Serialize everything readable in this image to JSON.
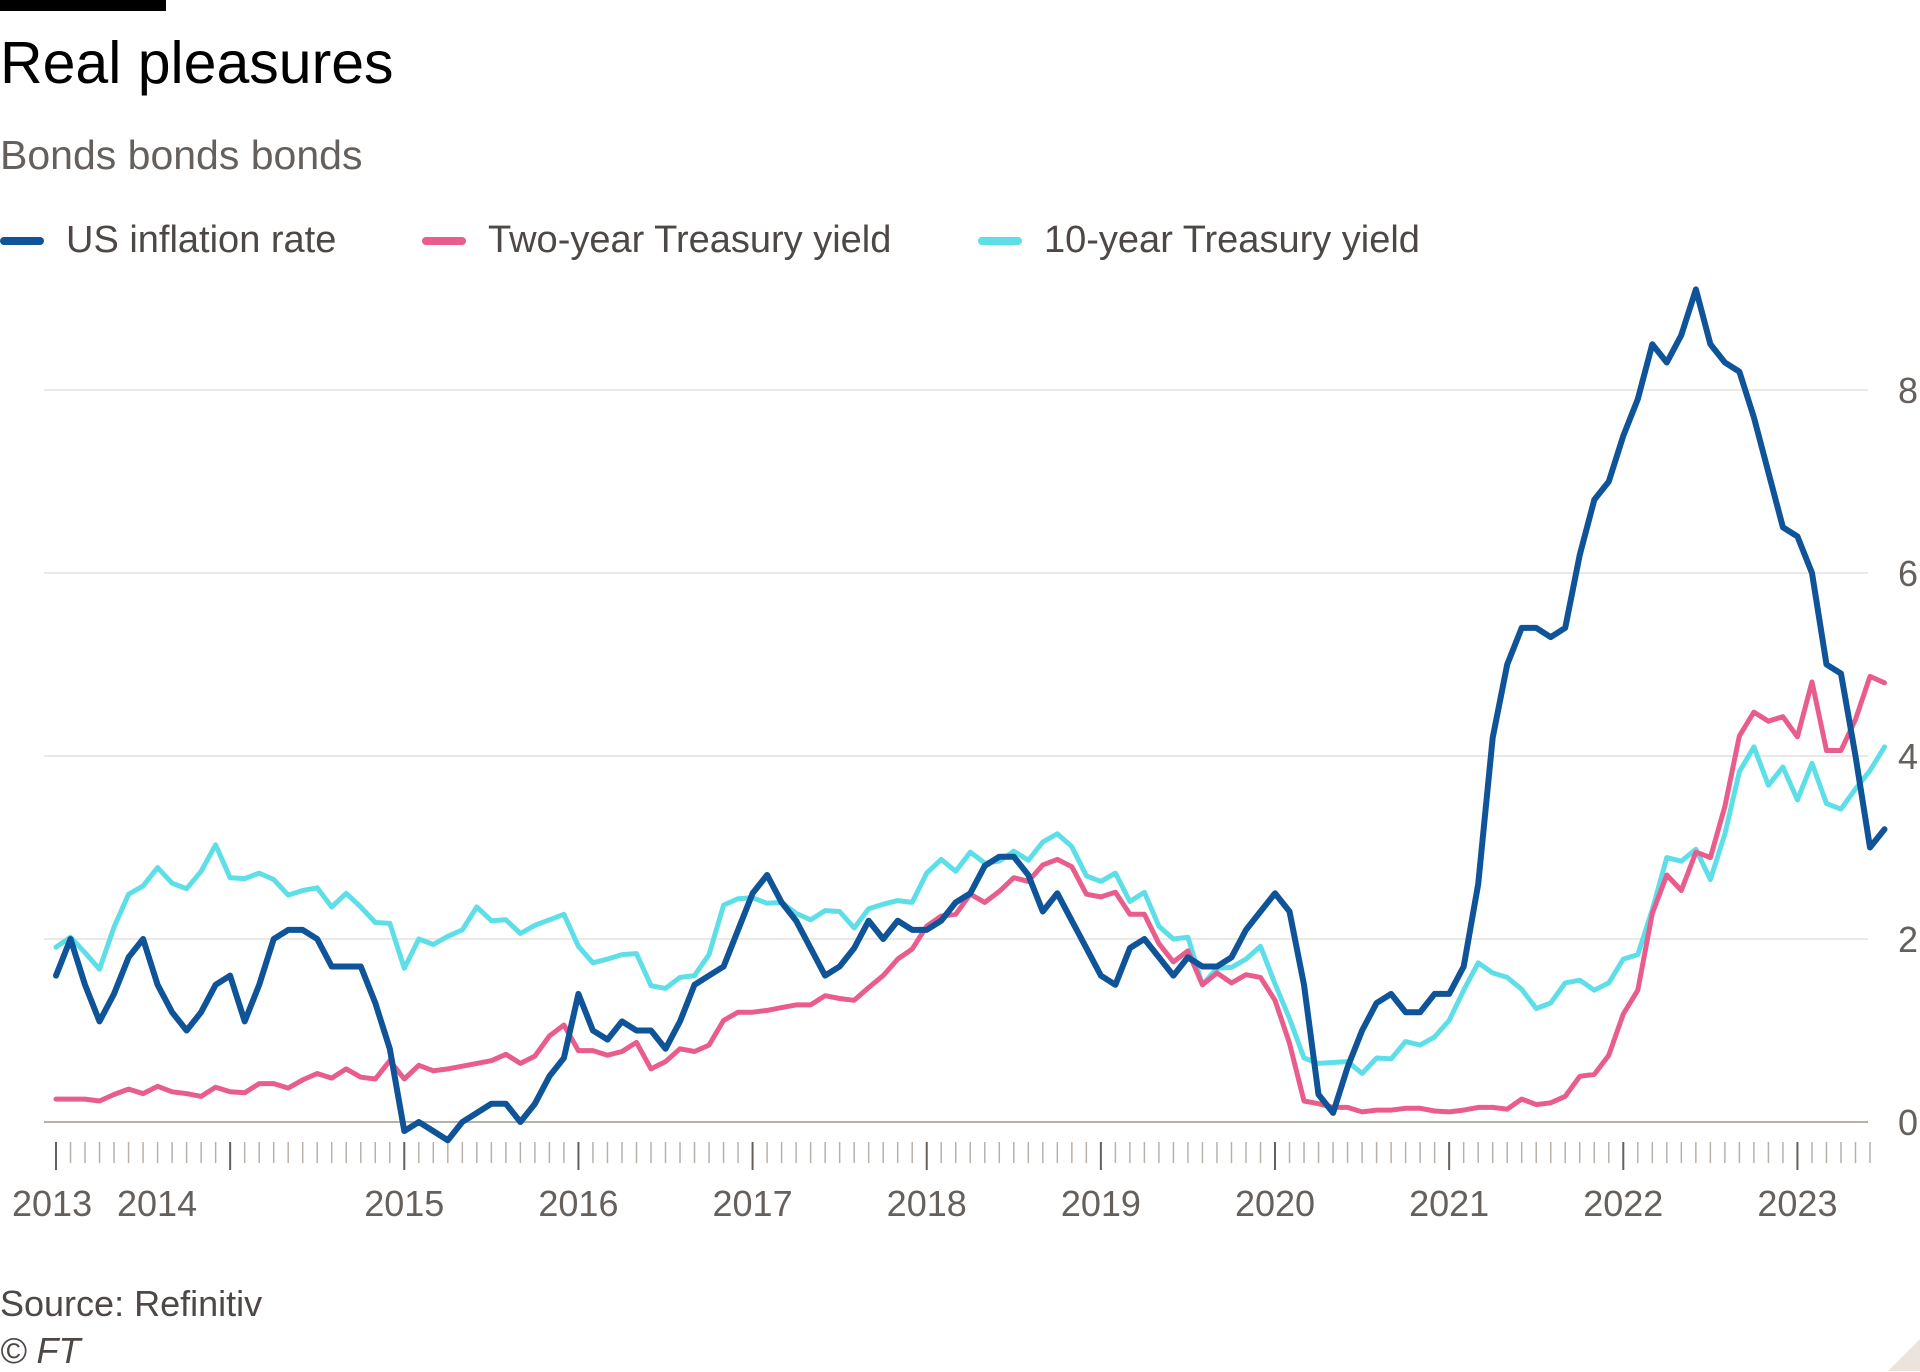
{
  "header": {
    "title": "Real pleasures",
    "subtitle": "Bonds bonds bonds"
  },
  "footer": {
    "source": "Source: Refinitiv",
    "copyright": "© FT"
  },
  "chart_data": {
    "type": "line",
    "title": "Real pleasures",
    "subtitle": "Bonds bonds bonds",
    "xlabel": "",
    "ylabel": "",
    "x_start": "2013-01",
    "x_step": "month",
    "xlim": [
      "2013-01",
      "2023-06"
    ],
    "ylim": [
      -0.3,
      9.6
    ],
    "y_ticks": [
      0,
      2,
      4,
      6,
      8
    ],
    "x_tick_labels": [
      "2013",
      "2014",
      "2015",
      "2016",
      "2017",
      "2018",
      "2019",
      "2020",
      "2021",
      "2022",
      "2023"
    ],
    "grid": "horizontal",
    "y_axis_position": "right",
    "legend_position": "top-left",
    "series": [
      {
        "name": "US inflation rate",
        "color": "#0f5499",
        "values": [
          1.6,
          2.0,
          1.5,
          1.1,
          1.4,
          1.8,
          2.0,
          1.5,
          1.2,
          1.0,
          1.2,
          1.5,
          1.6,
          1.1,
          1.5,
          2.0,
          2.1,
          2.1,
          2.0,
          1.7,
          1.7,
          1.7,
          1.3,
          0.8,
          -0.1,
          0.0,
          -0.1,
          -0.2,
          0.0,
          0.1,
          0.2,
          0.2,
          0.0,
          0.2,
          0.5,
          0.7,
          1.4,
          1.0,
          0.9,
          1.1,
          1.0,
          1.0,
          0.8,
          1.1,
          1.5,
          1.6,
          1.7,
          2.1,
          2.5,
          2.7,
          2.4,
          2.2,
          1.9,
          1.6,
          1.7,
          1.9,
          2.2,
          2.0,
          2.2,
          2.1,
          2.1,
          2.2,
          2.4,
          2.5,
          2.8,
          2.9,
          2.9,
          2.7,
          2.3,
          2.5,
          2.2,
          1.9,
          1.6,
          1.5,
          1.9,
          2.0,
          1.8,
          1.6,
          1.8,
          1.7,
          1.7,
          1.8,
          2.1,
          2.3,
          2.5,
          2.3,
          1.5,
          0.3,
          0.1,
          0.6,
          1.0,
          1.3,
          1.4,
          1.2,
          1.2,
          1.4,
          1.4,
          1.7,
          2.6,
          4.2,
          5.0,
          5.4,
          5.4,
          5.3,
          5.4,
          6.2,
          6.8,
          7.0,
          7.5,
          7.9,
          8.5,
          8.3,
          8.6,
          9.1,
          8.5,
          8.3,
          8.2,
          7.7,
          7.1,
          6.5,
          6.4,
          6.0,
          5.0,
          4.9,
          4.0,
          3.0,
          3.2
        ]
      },
      {
        "name": "Two-year Treasury yield",
        "color": "#e95d8c",
        "values": [
          0.25,
          0.25,
          0.25,
          0.23,
          0.3,
          0.36,
          0.31,
          0.39,
          0.33,
          0.31,
          0.28,
          0.38,
          0.33,
          0.32,
          0.42,
          0.42,
          0.37,
          0.46,
          0.53,
          0.48,
          0.58,
          0.49,
          0.47,
          0.67,
          0.47,
          0.62,
          0.56,
          0.58,
          0.61,
          0.64,
          0.67,
          0.74,
          0.64,
          0.72,
          0.94,
          1.06,
          0.78,
          0.78,
          0.73,
          0.77,
          0.87,
          0.58,
          0.66,
          0.8,
          0.77,
          0.84,
          1.11,
          1.2,
          1.2,
          1.22,
          1.25,
          1.28,
          1.28,
          1.38,
          1.35,
          1.33,
          1.47,
          1.6,
          1.78,
          1.89,
          2.14,
          2.25,
          2.27,
          2.49,
          2.4,
          2.52,
          2.67,
          2.63,
          2.81,
          2.87,
          2.79,
          2.49,
          2.46,
          2.51,
          2.27,
          2.27,
          1.95,
          1.75,
          1.87,
          1.5,
          1.63,
          1.52,
          1.61,
          1.58,
          1.33,
          0.86,
          0.23,
          0.2,
          0.16,
          0.16,
          0.11,
          0.13,
          0.13,
          0.15,
          0.15,
          0.12,
          0.11,
          0.13,
          0.16,
          0.16,
          0.14,
          0.25,
          0.19,
          0.21,
          0.28,
          0.5,
          0.52,
          0.73,
          1.18,
          1.44,
          2.28,
          2.7,
          2.53,
          2.95,
          2.89,
          3.45,
          4.22,
          4.48,
          4.38,
          4.43,
          4.21,
          4.81,
          4.06,
          4.06,
          4.4,
          4.87,
          4.8
        ]
      },
      {
        "name": "10-year Treasury yield",
        "color": "#5edfe8",
        "values": [
          1.91,
          2.02,
          1.85,
          1.67,
          2.13,
          2.49,
          2.58,
          2.78,
          2.61,
          2.55,
          2.74,
          3.03,
          2.67,
          2.66,
          2.72,
          2.65,
          2.48,
          2.53,
          2.56,
          2.35,
          2.5,
          2.35,
          2.18,
          2.17,
          1.68,
          2.0,
          1.94,
          2.03,
          2.1,
          2.35,
          2.2,
          2.21,
          2.06,
          2.15,
          2.21,
          2.27,
          1.92,
          1.74,
          1.78,
          1.83,
          1.84,
          1.49,
          1.46,
          1.58,
          1.6,
          1.83,
          2.37,
          2.44,
          2.45,
          2.39,
          2.4,
          2.28,
          2.21,
          2.31,
          2.3,
          2.12,
          2.33,
          2.38,
          2.42,
          2.4,
          2.72,
          2.87,
          2.74,
          2.95,
          2.83,
          2.85,
          2.96,
          2.86,
          3.06,
          3.15,
          3.01,
          2.69,
          2.63,
          2.72,
          2.41,
          2.51,
          2.14,
          2.0,
          2.02,
          1.5,
          1.68,
          1.69,
          1.78,
          1.92,
          1.51,
          1.13,
          0.7,
          0.64,
          0.65,
          0.66,
          0.53,
          0.7,
          0.69,
          0.88,
          0.84,
          0.93,
          1.11,
          1.44,
          1.74,
          1.63,
          1.58,
          1.45,
          1.24,
          1.3,
          1.52,
          1.55,
          1.44,
          1.52,
          1.78,
          1.83,
          2.32,
          2.89,
          2.85,
          2.98,
          2.65,
          3.15,
          3.83,
          4.1,
          3.68,
          3.88,
          3.52,
          3.92,
          3.48,
          3.42,
          3.64,
          3.84,
          4.1
        ]
      }
    ]
  }
}
